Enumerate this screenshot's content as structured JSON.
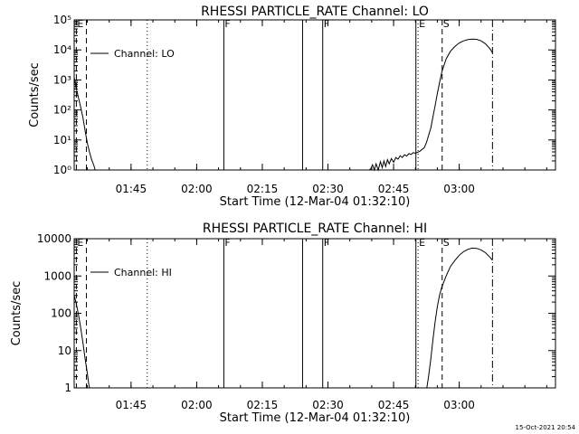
{
  "footer": {
    "timestamp": "15-Oct-2021 20:54"
  },
  "chart_data": [
    {
      "type": "line",
      "title": "RHESSI PARTICLE_RATE Channel: LO",
      "xlabel": "Start Time (12-Mar-04 01:32:10)",
      "ylabel": "Counts/sec",
      "yscale": "log",
      "xlim_minutes": [
        0,
        110
      ],
      "ylim": [
        1,
        100000
      ],
      "xticks": [
        {
          "t": 13,
          "label": "01:45"
        },
        {
          "t": 28,
          "label": "02:00"
        },
        {
          "t": 43,
          "label": "02:15"
        },
        {
          "t": 58,
          "label": "02:30"
        },
        {
          "t": 73,
          "label": "02:45"
        },
        {
          "t": 88,
          "label": "03:00"
        }
      ],
      "yticks": [
        {
          "v": 1,
          "label": "10⁰"
        },
        {
          "v": 10,
          "label": "10¹"
        },
        {
          "v": 100,
          "label": "10²"
        },
        {
          "v": 1000,
          "label": "10³"
        },
        {
          "v": 10000,
          "label": "10⁴"
        },
        {
          "v": 100000,
          "label": "10⁵"
        }
      ],
      "legend": {
        "label": "Channel: LO",
        "position": "top-left"
      },
      "event_lines": [
        {
          "t": 0.5,
          "style": "dashed",
          "label": "E"
        },
        {
          "t": 2.8,
          "style": "dashed",
          "label": ""
        },
        {
          "t": 16.7,
          "style": "dotted",
          "label": ""
        },
        {
          "t": 34.2,
          "style": "solid",
          "label": "F"
        },
        {
          "t": 52.2,
          "style": "solid",
          "label": ""
        },
        {
          "t": 56.8,
          "style": "solid",
          "label": "F"
        },
        {
          "t": 78.1,
          "style": "solid",
          "label": ""
        },
        {
          "t": 78.6,
          "style": "dotted",
          "label": "E"
        },
        {
          "t": 84.1,
          "style": "dashed",
          "label": "S"
        },
        {
          "t": 95.6,
          "style": "dashdot",
          "label": ""
        }
      ],
      "series": [
        {
          "name": "Channel: LO",
          "segments": [
            [
              [
                0.0,
                1200
              ],
              [
                0.5,
                500
              ],
              [
                1.0,
                250
              ],
              [
                1.5,
                120
              ],
              [
                2.0,
                55
              ],
              [
                2.5,
                20
              ],
              [
                3.0,
                8
              ],
              [
                3.5,
                4
              ],
              [
                4.0,
                2.2
              ],
              [
                4.5,
                1.4
              ],
              [
                4.8,
                1.0
              ]
            ],
            [
              [
                67.4,
                1.0
              ],
              [
                67.8,
                1.1
              ],
              [
                68.2,
                1.5
              ],
              [
                68.6,
                1.0
              ],
              [
                69.0,
                1.6
              ],
              [
                69.5,
                1.0
              ],
              [
                70.0,
                1.9
              ],
              [
                70.4,
                1.2
              ],
              [
                70.8,
                2.0
              ],
              [
                71.2,
                1.3
              ],
              [
                71.6,
                2.2
              ],
              [
                72.0,
                1.6
              ],
              [
                72.5,
                2.4
              ],
              [
                73.0,
                1.8
              ],
              [
                73.5,
                2.6
              ],
              [
                74.0,
                2.3
              ],
              [
                74.5,
                3.0
              ],
              [
                75.0,
                2.6
              ],
              [
                75.5,
                3.2
              ],
              [
                76.0,
                2.9
              ],
              [
                76.5,
                3.5
              ],
              [
                77.0,
                3.3
              ],
              [
                77.5,
                3.8
              ],
              [
                78.0,
                3.6
              ],
              [
                79.0,
                4.2
              ],
              [
                80.0,
                5.5
              ],
              [
                80.5,
                8
              ],
              [
                81.0,
                14
              ],
              [
                81.5,
                25
              ],
              [
                82.0,
                60
              ],
              [
                82.5,
                140
              ],
              [
                83.0,
                350
              ],
              [
                83.5,
                800
              ],
              [
                84.0,
                1800
              ],
              [
                85.0,
                5000
              ],
              [
                86.0,
                9000
              ],
              [
                87.0,
                13000
              ],
              [
                88.0,
                17000
              ],
              [
                89.0,
                20000
              ],
              [
                90.0,
                22000
              ],
              [
                91.0,
                23000
              ],
              [
                92.0,
                22500
              ],
              [
                93.0,
                20000
              ],
              [
                94.0,
                16000
              ],
              [
                95.0,
                11000
              ],
              [
                95.6,
                8000
              ]
            ]
          ]
        }
      ]
    },
    {
      "type": "line",
      "title": "RHESSI PARTICLE_RATE Channel: HI",
      "xlabel": "Start Time (12-Mar-04 01:32:10)",
      "ylabel": "Counts/sec",
      "yscale": "log",
      "xlim_minutes": [
        0,
        110
      ],
      "ylim": [
        1,
        10000
      ],
      "xticks": [
        {
          "t": 13,
          "label": "01:45"
        },
        {
          "t": 28,
          "label": "02:00"
        },
        {
          "t": 43,
          "label": "02:15"
        },
        {
          "t": 58,
          "label": "02:30"
        },
        {
          "t": 73,
          "label": "02:45"
        },
        {
          "t": 88,
          "label": "03:00"
        }
      ],
      "yticks": [
        {
          "v": 1,
          "label": "1"
        },
        {
          "v": 10,
          "label": "10"
        },
        {
          "v": 100,
          "label": "100"
        },
        {
          "v": 1000,
          "label": "1000"
        },
        {
          "v": 10000,
          "label": "10000"
        }
      ],
      "legend": {
        "label": "Channel: HI",
        "position": "top-left"
      },
      "event_lines": [
        {
          "t": 0.5,
          "style": "dashed",
          "label": "E"
        },
        {
          "t": 2.8,
          "style": "dashed",
          "label": ""
        },
        {
          "t": 16.7,
          "style": "dotted",
          "label": ""
        },
        {
          "t": 34.2,
          "style": "solid",
          "label": "F"
        },
        {
          "t": 52.2,
          "style": "solid",
          "label": ""
        },
        {
          "t": 56.8,
          "style": "solid",
          "label": "F"
        },
        {
          "t": 78.1,
          "style": "solid",
          "label": ""
        },
        {
          "t": 78.6,
          "style": "dotted",
          "label": "E"
        },
        {
          "t": 84.1,
          "style": "dashed",
          "label": "S"
        },
        {
          "t": 95.6,
          "style": "dashdot",
          "label": ""
        }
      ],
      "series": [
        {
          "name": "Channel: HI",
          "segments": [
            [
              [
                0.0,
                300
              ],
              [
                0.5,
                180
              ],
              [
                1.0,
                90
              ],
              [
                1.5,
                40
              ],
              [
                2.0,
                16
              ],
              [
                2.5,
                6
              ],
              [
                3.0,
                2.5
              ],
              [
                3.3,
                1.3
              ],
              [
                3.5,
                1.0
              ]
            ],
            [
              [
                80.6,
                1.0
              ],
              [
                81.0,
                2
              ],
              [
                81.5,
                6
              ],
              [
                82.0,
                20
              ],
              [
                82.5,
                60
              ],
              [
                83.0,
                150
              ],
              [
                83.5,
                300
              ],
              [
                84.0,
                500
              ],
              [
                85.0,
                1000
              ],
              [
                86.0,
                1800
              ],
              [
                87.0,
                2600
              ],
              [
                88.0,
                3600
              ],
              [
                89.0,
                4500
              ],
              [
                90.0,
                5200
              ],
              [
                91.0,
                5600
              ],
              [
                92.0,
                5500
              ],
              [
                93.0,
                5000
              ],
              [
                94.0,
                4200
              ],
              [
                95.0,
                3200
              ],
              [
                95.6,
                2600
              ]
            ]
          ]
        }
      ]
    }
  ]
}
